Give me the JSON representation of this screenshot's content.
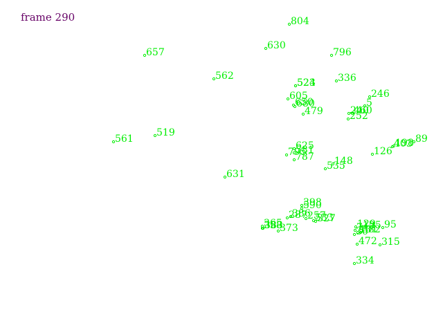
{
  "frame_label": "frame 290",
  "colors": {
    "frame_label": "#660066",
    "points": "#00ee00",
    "background": "#ffffff"
  },
  "points": [
    {
      "id": "804"
    },
    {
      "id": "657"
    },
    {
      "id": "630"
    },
    {
      "id": "796"
    },
    {
      "id": "562"
    },
    {
      "id": "336"
    },
    {
      "id": "524"
    },
    {
      "id": "523"
    },
    {
      "id": "246"
    },
    {
      "id": "605"
    },
    {
      "id": "5"
    },
    {
      "id": "650"
    },
    {
      "id": "680"
    },
    {
      "id": "479"
    },
    {
      "id": "240"
    },
    {
      "id": "460"
    },
    {
      "id": "252"
    },
    {
      "id": "519"
    },
    {
      "id": "561"
    },
    {
      "id": "89"
    },
    {
      "id": "198"
    },
    {
      "id": "403"
    },
    {
      "id": "126"
    },
    {
      "id": "625"
    },
    {
      "id": "581"
    },
    {
      "id": "795"
    },
    {
      "id": "787"
    },
    {
      "id": "148"
    },
    {
      "id": "535"
    },
    {
      "id": "631"
    },
    {
      "id": "398"
    },
    {
      "id": "590"
    },
    {
      "id": "287"
    },
    {
      "id": "327"
    },
    {
      "id": "257"
    },
    {
      "id": "386"
    },
    {
      "id": "533"
    },
    {
      "id": "365"
    },
    {
      "id": "358"
    },
    {
      "id": "383"
    },
    {
      "id": "373"
    },
    {
      "id": "129"
    },
    {
      "id": "125"
    },
    {
      "id": "95"
    },
    {
      "id": "747"
    },
    {
      "id": "382"
    },
    {
      "id": "131"
    },
    {
      "id": "36"
    },
    {
      "id": "472"
    },
    {
      "id": "315"
    },
    {
      "id": "334"
    }
  ]
}
